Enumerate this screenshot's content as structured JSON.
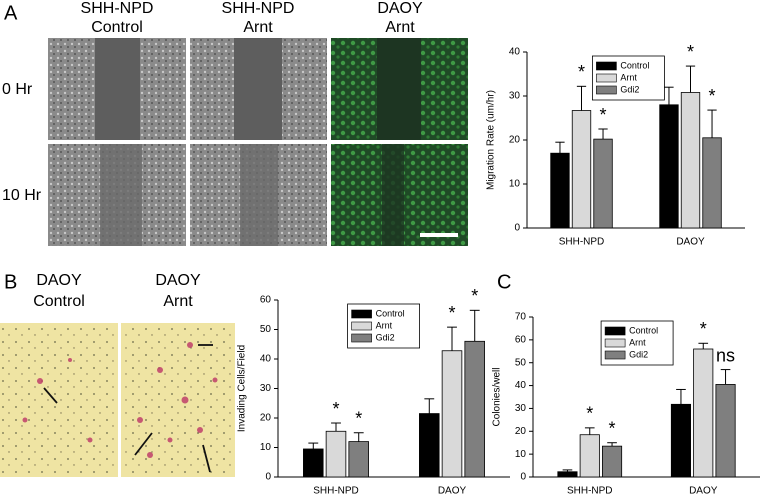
{
  "figure": {
    "panel_labels": [
      "A",
      "B",
      "C"
    ],
    "a_columns": [
      [
        "SHH-NPD",
        "Control"
      ],
      [
        "SHH-NPD",
        "Arnt"
      ],
      [
        "DAOY",
        "Arnt"
      ]
    ],
    "a_rows": [
      "0 Hr",
      "10 Hr"
    ],
    "b_columns": [
      [
        "DAOY",
        "Control"
      ],
      [
        "DAOY",
        "Arnt"
      ]
    ]
  },
  "chart_data": [
    {
      "type": "bar",
      "y_label": "Migration Rate (um/hr)",
      "categories": [
        "SHH-NPD",
        "DAOY"
      ],
      "series": [
        {
          "name": "Control",
          "color": "#000000",
          "values": [
            17,
            28
          ],
          "errors": [
            2.5,
            4
          ],
          "significance": [
            null,
            null
          ]
        },
        {
          "name": "Arnt",
          "color": "#d9d9d9",
          "values": [
            26.7,
            30.8
          ],
          "errors": [
            5.5,
            6
          ],
          "significance": [
            "*",
            "*"
          ]
        },
        {
          "name": "Gdi2",
          "color": "#7f7f7f",
          "values": [
            20.2,
            20.5
          ],
          "errors": [
            2.3,
            6.3
          ],
          "significance": [
            "*",
            "*"
          ]
        }
      ],
      "ylim": [
        0,
        40
      ],
      "yticks": [
        0,
        10,
        20,
        30,
        40
      ],
      "legend": "upper center"
    },
    {
      "type": "bar",
      "y_label": "Invading Cells/Field",
      "categories": [
        "SHH-NPD",
        "DAOY"
      ],
      "series": [
        {
          "name": "Control",
          "color": "#000000",
          "values": [
            9.5,
            21.5
          ],
          "errors": [
            2,
            5
          ],
          "significance": [
            null,
            null
          ]
        },
        {
          "name": "Arnt",
          "color": "#d9d9d9",
          "values": [
            15.5,
            42.8
          ],
          "errors": [
            2.8,
            8
          ],
          "significance": [
            "*",
            "*"
          ]
        },
        {
          "name": "Gdi2",
          "color": "#7f7f7f",
          "values": [
            12,
            46
          ],
          "errors": [
            3,
            10.5
          ],
          "significance": [
            "*",
            "*"
          ]
        }
      ],
      "ylim": [
        0,
        60
      ],
      "yticks": [
        0,
        10,
        20,
        30,
        40,
        50,
        60
      ],
      "legend": "upper center"
    },
    {
      "type": "bar",
      "y_label": "Colonies/well",
      "categories": [
        "SHH-NPD",
        "DAOY"
      ],
      "series": [
        {
          "name": "Control",
          "color": "#000000",
          "values": [
            2.3,
            31.8
          ],
          "errors": [
            0.8,
            6.5
          ],
          "significance": [
            null,
            null
          ]
        },
        {
          "name": "Arnt",
          "color": "#d9d9d9",
          "values": [
            18.5,
            56
          ],
          "errors": [
            3,
            2.5
          ],
          "significance": [
            "*",
            "*"
          ]
        },
        {
          "name": "Gdi2",
          "color": "#7f7f7f",
          "values": [
            13.5,
            40.5
          ],
          "errors": [
            1.5,
            6.5
          ],
          "significance": [
            "*",
            "ns"
          ]
        }
      ],
      "ylim": [
        0,
        70
      ],
      "yticks": [
        0,
        10,
        20,
        30,
        40,
        50,
        60,
        70
      ],
      "legend": "upper center"
    }
  ]
}
